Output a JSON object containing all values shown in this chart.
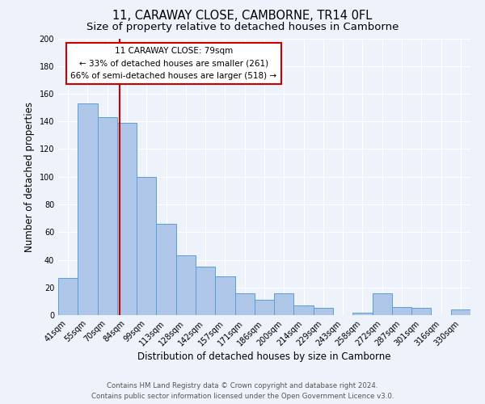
{
  "title": "11, CARAWAY CLOSE, CAMBORNE, TR14 0FL",
  "subtitle": "Size of property relative to detached houses in Camborne",
  "xlabel": "Distribution of detached houses by size in Camborne",
  "ylabel": "Number of detached properties",
  "bar_labels": [
    "41sqm",
    "55sqm",
    "70sqm",
    "84sqm",
    "99sqm",
    "113sqm",
    "128sqm",
    "142sqm",
    "157sqm",
    "171sqm",
    "186sqm",
    "200sqm",
    "214sqm",
    "229sqm",
    "243sqm",
    "258sqm",
    "272sqm",
    "287sqm",
    "301sqm",
    "316sqm",
    "330sqm"
  ],
  "bar_values": [
    27,
    153,
    143,
    139,
    100,
    66,
    43,
    35,
    28,
    16,
    11,
    16,
    7,
    5,
    0,
    2,
    16,
    6,
    5,
    0,
    4
  ],
  "bar_color": "#aec6e8",
  "bar_edge_color": "#5a9fd4",
  "vline_color": "#cc0000",
  "annotation_text_line1": "11 CARAWAY CLOSE: 79sqm",
  "annotation_text_line2": "← 33% of detached houses are smaller (261)",
  "annotation_text_line3": "66% of semi-detached houses are larger (518) →",
  "ylim": [
    0,
    200
  ],
  "yticks": [
    0,
    20,
    40,
    60,
    80,
    100,
    120,
    140,
    160,
    180,
    200
  ],
  "footer_line1": "Contains HM Land Registry data © Crown copyright and database right 2024.",
  "footer_line2": "Contains public sector information licensed under the Open Government Licence v3.0.",
  "bg_color": "#edf2fb",
  "plot_bg_color": "#edf2fb",
  "grid_color": "#ffffff",
  "title_fontsize": 10.5,
  "subtitle_fontsize": 9.5,
  "axis_label_fontsize": 8.5,
  "tick_fontsize": 7
}
